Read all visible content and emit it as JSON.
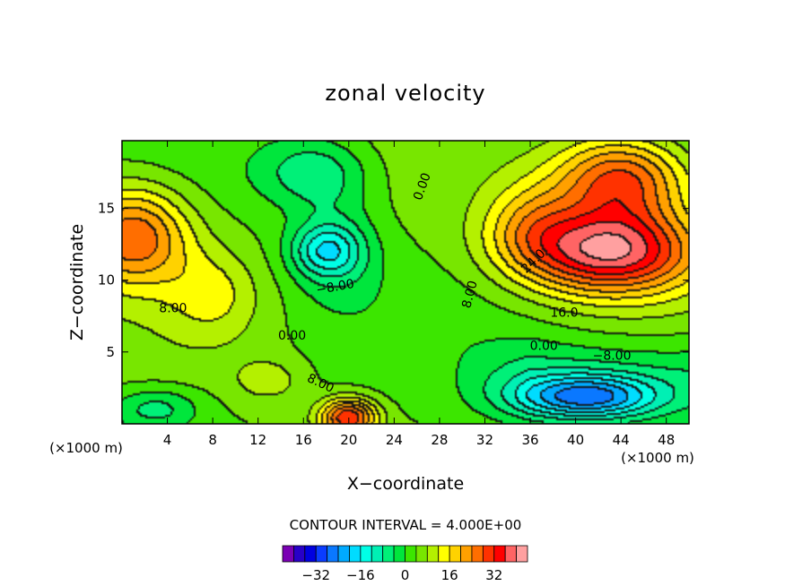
{
  "chart_data": {
    "type": "heatmap",
    "title": "zonal velocity",
    "xlabel": "X−coordinate",
    "ylabel": "Z−coordinate",
    "x_unit_left": "(×1000 m)",
    "x_unit_right": "(×1000 m)",
    "xlim": [
      0,
      50
    ],
    "ylim": [
      0,
      19.7
    ],
    "xticks": [
      4,
      8,
      12,
      16,
      20,
      24,
      28,
      32,
      36,
      40,
      44,
      48
    ],
    "yticks": [
      5,
      10,
      15
    ],
    "contour_interval_text": "CONTOUR INTERVAL = 4.000E+00",
    "contour_interval": 4,
    "colorbar": {
      "levels": [
        -40,
        -36,
        -32,
        -28,
        -24,
        -20,
        -16,
        -12,
        -8,
        -4,
        0,
        4,
        8,
        12,
        16,
        20,
        24,
        28,
        32,
        36,
        40
      ],
      "colors": [
        "#7a00b4",
        "#2800c8",
        "#0000e0",
        "#0a3cff",
        "#0a78ff",
        "#00aaff",
        "#00dcff",
        "#00ffe6",
        "#00f0b4",
        "#00f078",
        "#00e63c",
        "#3ce600",
        "#78e600",
        "#b4f000",
        "#ffff00",
        "#ffd200",
        "#ffa000",
        "#ff6e00",
        "#ff3200",
        "#ff0000",
        "#ff6464",
        "#ffa0a0"
      ],
      "tick_labels": [
        {
          "value": -32,
          "label": "−32"
        },
        {
          "value": -16,
          "label": "−16"
        },
        {
          "value": 0,
          "label": "0"
        },
        {
          "value": 16,
          "label": "16"
        },
        {
          "value": 32,
          "label": "32"
        }
      ]
    },
    "features": [
      {
        "x": 1,
        "z": 13,
        "value": 24,
        "spread_x": 5,
        "spread_z": 3.5
      },
      {
        "x": 43,
        "z": 12,
        "value": 36,
        "spread_x": 8,
        "spread_z": 3
      },
      {
        "x": 44,
        "z": 17,
        "value": 26,
        "spread_x": 6,
        "spread_z": 3
      },
      {
        "x": 20,
        "z": 0.4,
        "value": 28,
        "spread_x": 2.5,
        "spread_z": 1.3
      },
      {
        "x": 17,
        "z": 17.5,
        "value": -11,
        "spread_x": 5,
        "spread_z": 2.5
      },
      {
        "x": 18,
        "z": 12,
        "value": -14,
        "spread_x": 3,
        "spread_z": 1.8
      },
      {
        "x": 19,
        "z": 12,
        "value": -8,
        "spread_x": 4,
        "spread_z": 4
      },
      {
        "x": 41,
        "z": 1.8,
        "value": -24,
        "spread_x": 6,
        "spread_z": 1.5
      },
      {
        "x": 3,
        "z": 1,
        "value": -10,
        "spread_x": 4,
        "spread_z": 1.5
      },
      {
        "x": 13,
        "z": 3,
        "value": 6,
        "spread_x": 3,
        "spread_z": 1.5
      },
      {
        "x": 36,
        "z": 14,
        "value": 10,
        "spread_x": 4,
        "spread_z": 3
      },
      {
        "x": 8,
        "z": 9,
        "value": 8,
        "spread_x": 4,
        "spread_z": 3
      }
    ],
    "base_value": 4,
    "contour_labels": [
      {
        "x": 26.5,
        "z": 16.5,
        "text": "0.00",
        "angle": -70
      },
      {
        "x": 18.8,
        "z": 9.5,
        "text": "−8.00",
        "angle": -10
      },
      {
        "x": 4.5,
        "z": 8,
        "text": "8.00",
        "angle": 0
      },
      {
        "x": 15,
        "z": 6.1,
        "text": "0.00",
        "angle": 0
      },
      {
        "x": 17.5,
        "z": 2.8,
        "text": "8.00",
        "angle": 25
      },
      {
        "x": 30.7,
        "z": 9,
        "text": "8.00",
        "angle": -75
      },
      {
        "x": 36.3,
        "z": 11.3,
        "text": "24.0",
        "angle": -45
      },
      {
        "x": 39,
        "z": 7.7,
        "text": "16.0",
        "angle": 0
      },
      {
        "x": 37.2,
        "z": 5.4,
        "text": "0.00",
        "angle": 0
      },
      {
        "x": 43.2,
        "z": 4.7,
        "text": "−8.00",
        "angle": 0
      }
    ]
  }
}
